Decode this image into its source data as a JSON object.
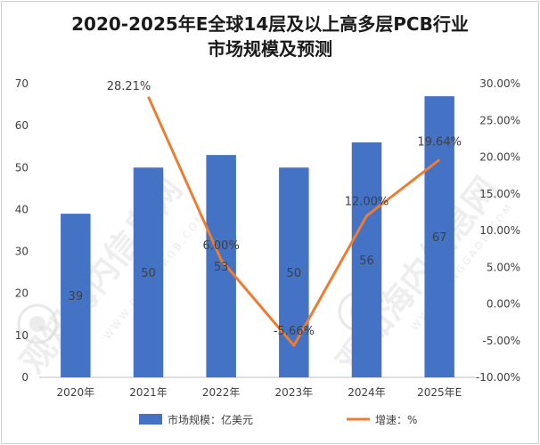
{
  "chart_data": {
    "type": "bar+line",
    "title_lines": [
      "2020-2025年E全球14层及以上高多层PCB行业",
      "市场规模及预测"
    ],
    "categories": [
      "2020年",
      "2021年",
      "2022年",
      "2023年",
      "2024年",
      "2025年E"
    ],
    "series": [
      {
        "name": "市场规模：亿美元",
        "type": "bar",
        "axis": "left",
        "color": "#4472c4",
        "values": [
          39,
          50,
          53,
          50,
          56,
          67
        ],
        "labels": [
          "39",
          "50",
          "53",
          "50",
          "56",
          "67"
        ]
      },
      {
        "name": "增速：%",
        "type": "line",
        "axis": "right",
        "color": "#ed7d31",
        "values": [
          null,
          28.21,
          6.0,
          -5.66,
          12.0,
          19.64
        ],
        "labels": [
          "",
          "28.21%",
          "6.00%",
          "-5.66%",
          "12.00%",
          "19.64%"
        ]
      }
    ],
    "left_axis": {
      "min": 0,
      "max": 70,
      "step": 10,
      "tick_labels": [
        "0",
        "10",
        "20",
        "30",
        "40",
        "50",
        "60",
        "70"
      ]
    },
    "right_axis": {
      "min": -10,
      "max": 30,
      "step": 5,
      "tick_labels": [
        "-10.00%",
        "-5.00%",
        "0.00%",
        "5.00%",
        "10.00%",
        "15.00%",
        "20.00%",
        "25.00%",
        "30.00%"
      ]
    },
    "grid": false,
    "legend_position": "bottom"
  },
  "watermark": {
    "text": "观知海内信息网",
    "url": "WWW.DONGGAOB.COM"
  }
}
